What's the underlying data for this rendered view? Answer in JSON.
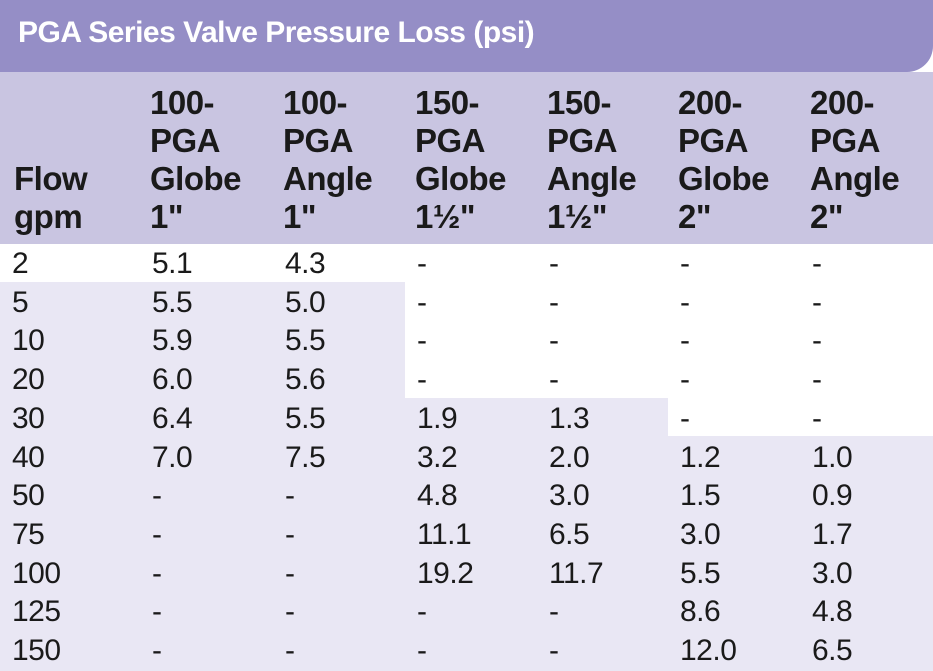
{
  "title": "PGA Series Valve Pressure Loss (psi)",
  "columns": [
    [
      "Flow",
      "gpm"
    ],
    [
      "100-",
      "PGA",
      "Globe",
      "1\""
    ],
    [
      "100-",
      "PGA",
      "Angle",
      "1\""
    ],
    [
      "150-",
      "PGA",
      "Globe",
      "1½\""
    ],
    [
      "150-",
      "PGA",
      "Angle",
      "1½\""
    ],
    [
      "200-",
      "PGA",
      "Globe",
      "2\""
    ],
    [
      "200-",
      "PGA",
      "Angle",
      "2\""
    ]
  ],
  "rows": [
    [
      "2",
      "5.1",
      "4.3",
      "-",
      "-",
      "-",
      "-"
    ],
    [
      "5",
      "5.5",
      "5.0",
      "-",
      "-",
      "-",
      "-"
    ],
    [
      "10",
      "5.9",
      "5.5",
      "-",
      "-",
      "-",
      "-"
    ],
    [
      "20",
      "6.0",
      "5.6",
      "-",
      "-",
      "-",
      "-"
    ],
    [
      "30",
      "6.4",
      "5.5",
      "1.9",
      "1.3",
      "-",
      "-"
    ],
    [
      "40",
      "7.0",
      "7.5",
      "3.2",
      "2.0",
      "1.2",
      "1.0"
    ],
    [
      "50",
      "-",
      "-",
      "4.8",
      "3.0",
      "1.5",
      "0.9"
    ],
    [
      "75",
      "-",
      "-",
      "11.1",
      "6.5",
      "3.0",
      "1.7"
    ],
    [
      "100",
      "-",
      "-",
      "19.2",
      "11.7",
      "5.5",
      "3.0"
    ],
    [
      "125",
      "-",
      "-",
      "-",
      "-",
      "8.6",
      "4.8"
    ],
    [
      "150",
      "-",
      "-",
      "-",
      "-",
      "12.0",
      "6.5"
    ]
  ],
  "colors": {
    "title_bar": "#958ec6",
    "header_band": "#c9c5e1",
    "shaded_cells": "#e9e7f4",
    "text": "#1a1a1a",
    "title_text": "#ffffff"
  }
}
